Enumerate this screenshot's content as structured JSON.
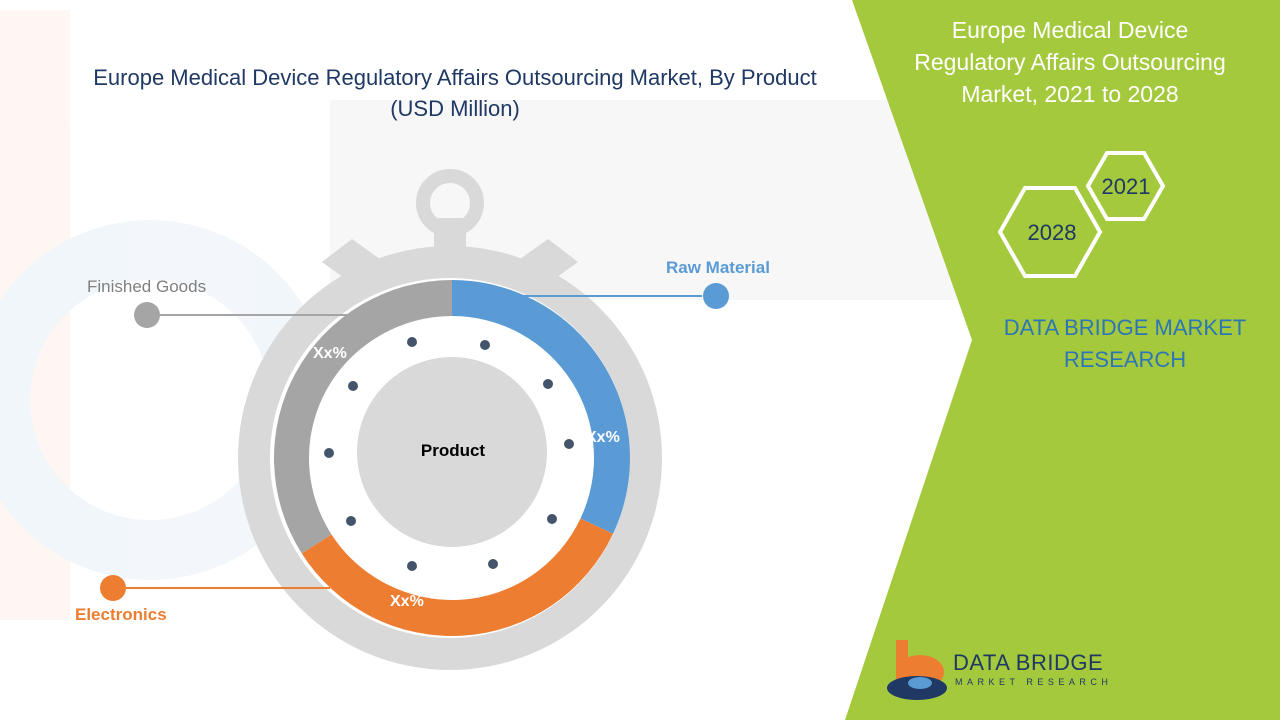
{
  "chart_data": {
    "type": "pie",
    "title": "Europe Medical Device Regulatory Affairs Outsourcing Market, By Product",
    "subtitle": "(USD Million)",
    "center_label": "Product",
    "categories": [
      "Raw Material",
      "Electronics",
      "Finished Goods"
    ],
    "values": [
      32,
      34,
      34
    ],
    "value_labels": [
      "Xx%",
      "Xx%",
      "Xx%"
    ],
    "colors": [
      "#5b9bd5",
      "#ed7d31",
      "#a5a5a5"
    ]
  },
  "side_panel": {
    "title_lines": [
      "Europe Medical Device",
      "Regulatory Affairs Outsourcing",
      "Market, 2021 to 2028"
    ],
    "year_start": "2021",
    "year_end": "2028",
    "brand_lines": [
      "DATA BRIDGE MARKET",
      "RESEARCH"
    ],
    "panel_color": "#a4c93d"
  },
  "logo": {
    "name": "DATA BRIDGE",
    "tagline": "MARKET RESEARCH"
  }
}
